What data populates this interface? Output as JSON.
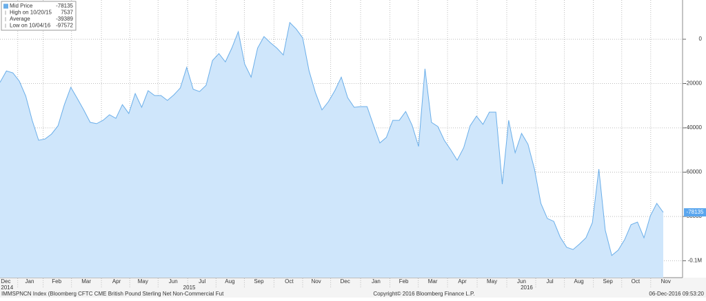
{
  "chart_data": {
    "type": "area",
    "series": [
      {
        "name": "Mid Price",
        "color": "#6aaee9",
        "fill": "#cfe6fb",
        "values": [
          -19500,
          -14300,
          -15200,
          -18900,
          -25700,
          -36600,
          -45600,
          -45000,
          -42800,
          -39100,
          -29500,
          -21700,
          -26700,
          -31900,
          -37500,
          -38100,
          -36600,
          -34100,
          -35700,
          -29500,
          -33500,
          -24500,
          -30700,
          -23200,
          -25400,
          -25400,
          -27600,
          -25100,
          -22000,
          -12700,
          -22600,
          -23600,
          -20800,
          -9600,
          -6500,
          -10200,
          -4000,
          3400,
          -11200,
          -17100,
          -4000,
          1200,
          -1600,
          -4000,
          -7100,
          7537,
          4600,
          600,
          -14300,
          -24200,
          -31900,
          -28200,
          -23200,
          -17100,
          -26400,
          -30700,
          -30400,
          -30400,
          -38800,
          -46800,
          -44300,
          -36600,
          -36600,
          -32600,
          -38800,
          -48400,
          -13300,
          -37500,
          -39400,
          -45600,
          -49900,
          -54600,
          -49000,
          -39100,
          -34700,
          -38400,
          -32900,
          -32900,
          -65400,
          -36600,
          -51200,
          -42500,
          -47400,
          -58600,
          -74100,
          -80900,
          -82200,
          -89300,
          -93900,
          -94900,
          -92400,
          -89600,
          -82800,
          -58600,
          -86200,
          -97572,
          -95200,
          -90500,
          -83700,
          -82500,
          -89600,
          -79700,
          -74100,
          -78135
        ]
      }
    ],
    "xlim": [
      0,
      107
    ],
    "xticks": [
      {
        "value": 0.9,
        "label": "Dec"
      },
      {
        "value": 4.6,
        "label": "Jan"
      },
      {
        "value": 8.8,
        "label": "Feb"
      },
      {
        "value": 13.4,
        "label": "Mar"
      },
      {
        "value": 18.1,
        "label": "Apr"
      },
      {
        "value": 22.2,
        "label": "May"
      },
      {
        "value": 26.9,
        "label": "Jun"
      },
      {
        "value": 31.4,
        "label": "Jul"
      },
      {
        "value": 35.7,
        "label": "Aug"
      },
      {
        "value": 40.2,
        "label": "Sep"
      },
      {
        "value": 44.9,
        "label": "Oct"
      },
      {
        "value": 49.1,
        "label": "Nov"
      },
      {
        "value": 53.6,
        "label": "Dec"
      },
      {
        "value": 58.4,
        "label": "Jan"
      },
      {
        "value": 62.7,
        "label": "Feb"
      },
      {
        "value": 67.2,
        "label": "Mar"
      },
      {
        "value": 71.8,
        "label": "Apr"
      },
      {
        "value": 76.4,
        "label": "May"
      },
      {
        "value": 81.0,
        "label": "Jun"
      },
      {
        "value": 85.4,
        "label": "Jul"
      },
      {
        "value": 89.9,
        "label": "Aug"
      },
      {
        "value": 94.4,
        "label": "Sep"
      },
      {
        "value": 98.7,
        "label": "Oct"
      },
      {
        "value": 103.4,
        "label": "Nov"
      }
    ],
    "year_ticks": [
      {
        "value": 1.1,
        "label": "2014"
      },
      {
        "value": 29.4,
        "label": "2015"
      },
      {
        "value": 81.8,
        "label": "2016"
      }
    ],
    "ylim": [
      -107600,
      17700
    ],
    "yticks": [
      0,
      -20000,
      -40000,
      -60000,
      -80000,
      {
        "value": -100000,
        "label": "-0.1M"
      }
    ],
    "grid": true,
    "legend": [
      {
        "label": "Mid Price",
        "value": -78135
      },
      {
        "label": "High on 10/20/15",
        "value": 7537
      },
      {
        "label": "Average",
        "value": -39389
      },
      {
        "label": "Low on 10/04/16",
        "value": -97572
      }
    ],
    "footer": {
      "left": "IMMSPNCN Index (Bloomberg CFTC CME British Pound Sterling Net Non-Commercial Fut",
      "center": "Copyright© 2016 Bloomberg Finance L.P.",
      "right": "06-Dec-2016 09:53:20"
    }
  }
}
